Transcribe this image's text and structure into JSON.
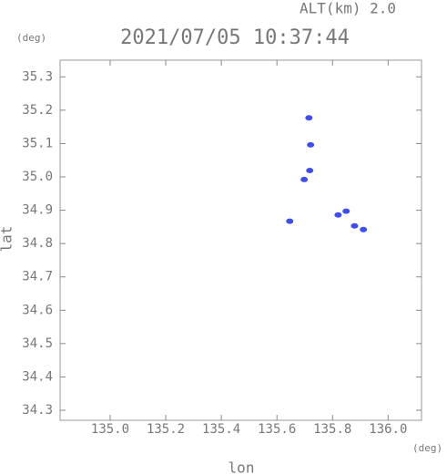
{
  "chart_data": {
    "type": "scatter",
    "title": "2021/07/05 10:37:44",
    "annotation": "ALT(km) 2.0",
    "y_unit": "(deg)",
    "x_unit": "(deg)",
    "xlabel": "lon",
    "ylabel": "lat",
    "color": "#3f4fe6",
    "x": [
      135.715,
      135.698,
      135.718,
      135.646,
      135.82,
      135.849,
      135.879,
      135.911,
      135.721
    ],
    "values": [
      35.177,
      34.992,
      35.019,
      34.867,
      34.886,
      34.897,
      34.853,
      34.842,
      35.096
    ],
    "xlim": [
      134.82,
      136.12
    ],
    "ylim": [
      34.27,
      35.35
    ],
    "xticks": [
      {
        "value": 135,
        "label": "135.0"
      },
      135.2,
      135.4,
      135.6,
      135.8,
      {
        "value": 136,
        "label": "136.0"
      }
    ],
    "yticks": [
      34.3,
      34.4,
      34.5,
      34.6,
      34.7,
      34.8,
      34.9,
      {
        "value": 35,
        "label": "35.0"
      },
      35.1,
      35.2,
      35.3
    ]
  }
}
